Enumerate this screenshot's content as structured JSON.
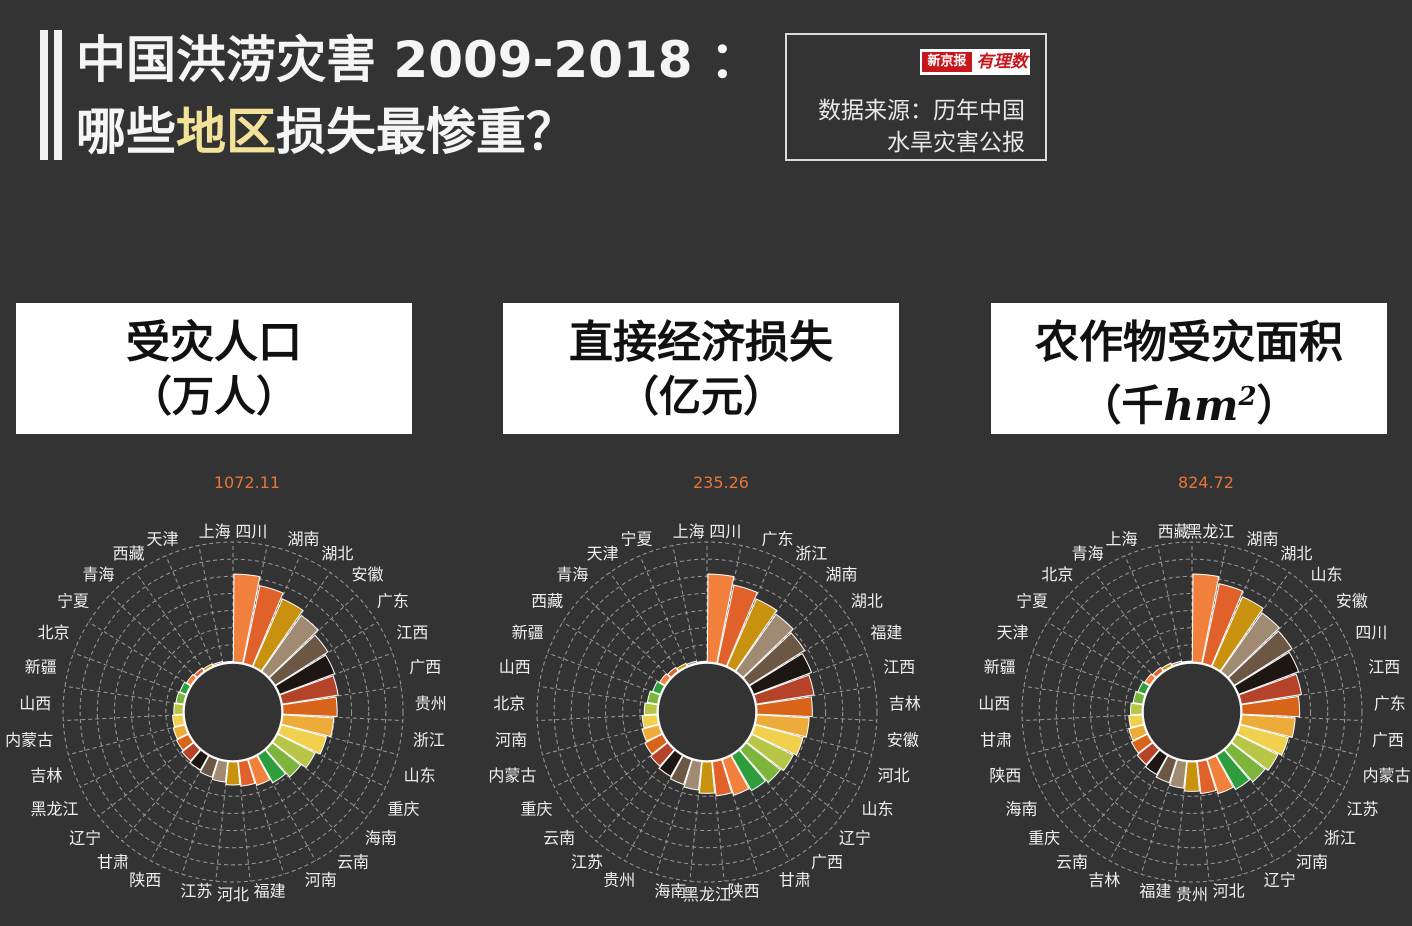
{
  "header": {
    "title_line1": "中国洪涝灾害 2009-2018 ：",
    "title_line2_pre": "哪些",
    "title_line2_highlight": "地区",
    "title_line2_post": "损失最惨重？",
    "accent_color": "#f3e29a"
  },
  "source": {
    "logo_left": "新京报",
    "logo_right": "有理数",
    "line1": "数据来源：历年中国",
    "line2": "水旱灾害公报"
  },
  "panels": [
    {
      "label": "受灾人口",
      "unit": "（万人）"
    },
    {
      "label": "直接经济损失",
      "unit": "（亿元）"
    },
    {
      "label": "农作物受灾面积",
      "unit_pre": "（千",
      "unit_math": "hm",
      "unit_sup": "2",
      "unit_post": "）"
    }
  ],
  "chart_data": [
    {
      "type": "polar-bar",
      "title": "受灾人口（万人）",
      "max_label": "1072.11",
      "categories": [
        "四川",
        "湖南",
        "湖北",
        "安徽",
        "广东",
        "江西",
        "广西",
        "贵州",
        "浙江",
        "山东",
        "重庆",
        "海南",
        "云南",
        "河南",
        "福建",
        "河北",
        "江苏",
        "陕西",
        "甘肃",
        "辽宁",
        "黑龙江",
        "吉林",
        "内蒙古",
        "山西",
        "新疆",
        "北京",
        "宁夏",
        "青海",
        "西藏",
        "天津",
        "上海"
      ],
      "values": [
        1072.11,
        963,
        894,
        830,
        760,
        715,
        688,
        660,
        620,
        570,
        510,
        440,
        380,
        330,
        300,
        280,
        250,
        225,
        200,
        180,
        160,
        145,
        128,
        112,
        96,
        84,
        60,
        46,
        30,
        20,
        8
      ],
      "colors": [
        "#f0803c",
        "#e0622a",
        "#c9920e",
        "#a08a72",
        "#6b5744",
        "#1e1612",
        "#b5432a",
        "#d8641a",
        "#edac3a",
        "#f1d04e",
        "#b8c648",
        "#7db43c",
        "#2e9e3c",
        "#f0803c",
        "#e0622a",
        "#c9920e",
        "#a08a72",
        "#6b5744",
        "#1e1612",
        "#b5432a",
        "#d8641a",
        "#edac3a",
        "#f1d04e",
        "#b8c648",
        "#7db43c",
        "#2e9e3c",
        "#f0803c",
        "#e0622a",
        "#c9920e",
        "#a08a72",
        "#6b5744"
      ]
    },
    {
      "type": "polar-bar",
      "title": "直接经济损失（亿元）",
      "max_label": "235.26",
      "categories": [
        "四川",
        "广东",
        "浙江",
        "湖南",
        "湖北",
        "福建",
        "江西",
        "吉林",
        "安徽",
        "河北",
        "山东",
        "辽宁",
        "广西",
        "甘肃",
        "陕西",
        "黑龙江",
        "海南",
        "贵州",
        "江苏",
        "云南",
        "重庆",
        "内蒙古",
        "河南",
        "北京",
        "山西",
        "新疆",
        "西藏",
        "青海",
        "天津",
        "宁夏",
        "上海"
      ],
      "values": [
        235.26,
        213,
        196,
        186,
        175,
        165,
        156,
        148,
        140,
        132,
        124,
        116,
        108,
        100,
        92,
        84,
        76,
        70,
        64,
        58,
        52,
        46,
        40,
        34,
        28,
        22,
        16,
        12,
        8,
        5,
        2
      ],
      "colors": [
        "#f0803c",
        "#e0622a",
        "#c9920e",
        "#a08a72",
        "#6b5744",
        "#1e1612",
        "#b5432a",
        "#d8641a",
        "#edac3a",
        "#f1d04e",
        "#b8c648",
        "#7db43c",
        "#2e9e3c",
        "#f0803c",
        "#e0622a",
        "#c9920e",
        "#a08a72",
        "#6b5744",
        "#1e1612",
        "#b5432a",
        "#d8641a",
        "#edac3a",
        "#f1d04e",
        "#b8c648",
        "#7db43c",
        "#2e9e3c",
        "#f0803c",
        "#e0622a",
        "#c9920e",
        "#a08a72",
        "#6b5744"
      ]
    },
    {
      "type": "polar-bar",
      "title": "农作物受灾面积（千hm²）",
      "max_label": "824.72",
      "categories": [
        "黑龙江",
        "湖南",
        "湖北",
        "山东",
        "安徽",
        "四川",
        "江西",
        "广东",
        "广西",
        "内蒙古",
        "江苏",
        "浙江",
        "河南",
        "辽宁",
        "河北",
        "贵州",
        "福建",
        "吉林",
        "云南",
        "重庆",
        "海南",
        "陕西",
        "甘肃",
        "山西",
        "新疆",
        "天津",
        "宁夏",
        "北京",
        "青海",
        "上海",
        "西藏"
      ],
      "values": [
        824.72,
        760,
        710,
        668,
        640,
        600,
        570,
        540,
        500,
        465,
        430,
        400,
        365,
        335,
        300,
        275,
        250,
        228,
        205,
        185,
        165,
        145,
        125,
        108,
        90,
        72,
        55,
        42,
        30,
        18,
        8
      ],
      "colors": [
        "#f0803c",
        "#e0622a",
        "#c9920e",
        "#a08a72",
        "#6b5744",
        "#1e1612",
        "#b5432a",
        "#d8641a",
        "#edac3a",
        "#f1d04e",
        "#b8c648",
        "#7db43c",
        "#2e9e3c",
        "#f0803c",
        "#e0622a",
        "#c9920e",
        "#a08a72",
        "#6b5744",
        "#1e1612",
        "#b5432a",
        "#d8641a",
        "#edac3a",
        "#f1d04e",
        "#b8c648",
        "#7db43c",
        "#2e9e3c",
        "#f0803c",
        "#e0622a",
        "#c9920e",
        "#a08a72",
        "#6b5744"
      ]
    }
  ]
}
